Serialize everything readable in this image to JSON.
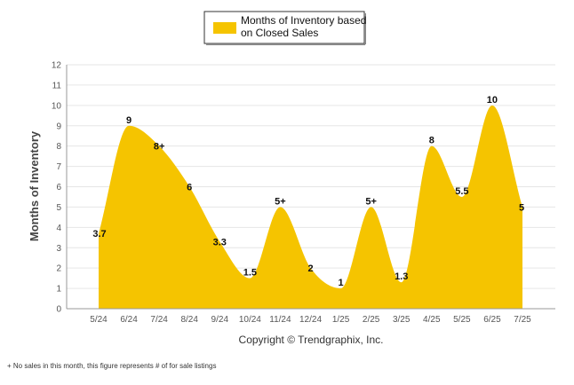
{
  "chart_data": {
    "type": "area",
    "categories": [
      "5/24",
      "6/24",
      "7/24",
      "8/24",
      "9/24",
      "10/24",
      "11/24",
      "12/24",
      "1/25",
      "2/25",
      "3/25",
      "4/25",
      "5/25",
      "6/25",
      "7/25"
    ],
    "values": [
      3.7,
      9,
      8,
      6,
      3.3,
      1.5,
      5,
      2,
      1,
      5,
      1.3,
      8,
      5.5,
      10,
      5
    ],
    "data_labels": [
      "3.7",
      "9",
      "8+",
      "6",
      "3.3",
      "1.5",
      "5+",
      "2",
      "1",
      "5+",
      "1.3",
      "8",
      "5.5",
      "10",
      "5"
    ],
    "series": [
      {
        "name": "Months of Inventory based on Closed Sales",
        "color": "#F5C400"
      }
    ],
    "ylabel": "Months of Inventory",
    "xlabel": "",
    "ylim": [
      0,
      12
    ],
    "yticks": [
      0,
      1,
      2,
      3,
      4,
      5,
      6,
      7,
      8,
      9,
      10,
      11,
      12
    ],
    "grid": true,
    "legend_position": "top-center",
    "legend_lines": [
      "Months of Inventory based",
      "on Closed Sales"
    ],
    "copyright": "Copyright © Trendgraphix, Inc.",
    "footnote": "+ No sales in this month, this figure represents # of for sale listings",
    "colors": {
      "area": "#F5C400",
      "grid": "#E6E6E6",
      "axis": "#999999"
    }
  }
}
